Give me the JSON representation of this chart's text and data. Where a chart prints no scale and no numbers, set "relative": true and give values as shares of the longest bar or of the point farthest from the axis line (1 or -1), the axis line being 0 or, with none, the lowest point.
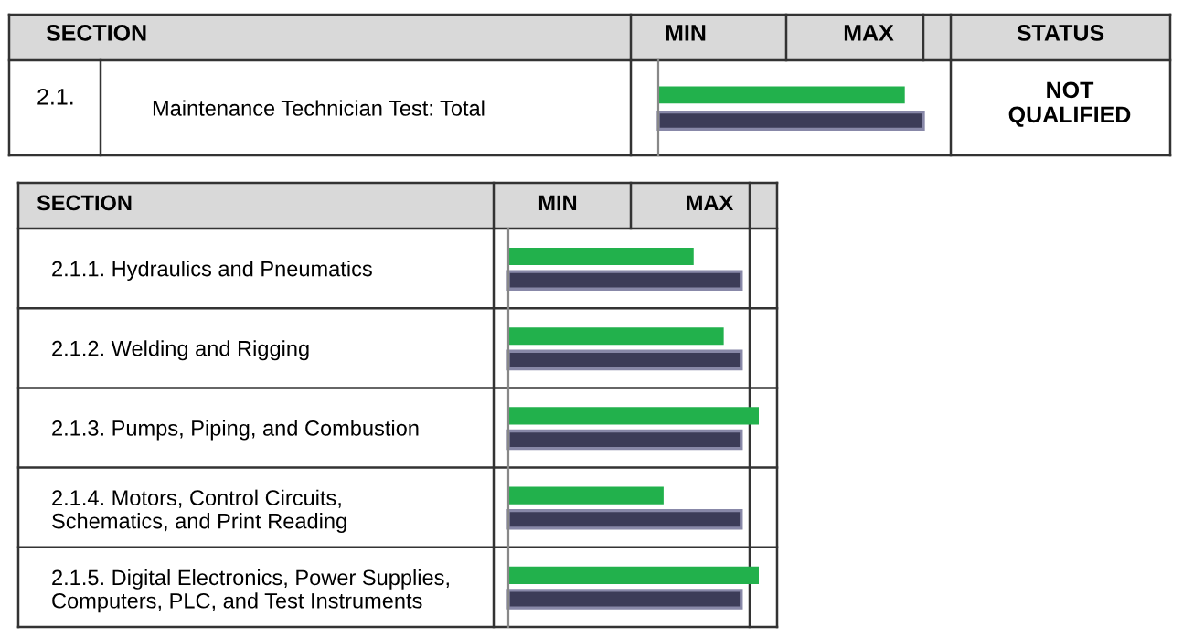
{
  "chart_data": [
    {
      "type": "bar",
      "orientation": "horizontal",
      "relative": true,
      "categories": [
        "Maintenance Technician Test: Total"
      ],
      "series": [
        {
          "color": "#22b14c",
          "values": [
            0.93
          ]
        },
        {
          "color": "#3c3c58",
          "values": [
            1
          ]
        }
      ],
      "annotations": [
        "SECTION",
        "MIN",
        "MAX",
        "STATUS",
        "2.1.",
        "NOT\nQUALIFIED"
      ]
    },
    {
      "type": "bar",
      "orientation": "horizontal",
      "relative": true,
      "categories": [
        "2.1.1. Hydraulics and Pneumatics",
        "2.1.2. Welding and Rigging",
        "2.1.3. Pumps, Piping, and Combustion",
        "2.1.4. Motors, Control Circuits,\nSchematics, and Print Reading",
        "2.1.5. Digital Electronics, Power Supplies,\nComputers, PLC, and Test Instruments"
      ],
      "series": [
        {
          "color": "#22b14c",
          "values": [
            0.74,
            0.86,
            1,
            0.62,
            1
          ]
        },
        {
          "color": "#3c3c58",
          "values": [
            0.93,
            0.93,
            0.93,
            0.93,
            0.93
          ]
        }
      ],
      "annotations": [
        "SECTION",
        "MIN",
        "MAX"
      ]
    }
  ]
}
